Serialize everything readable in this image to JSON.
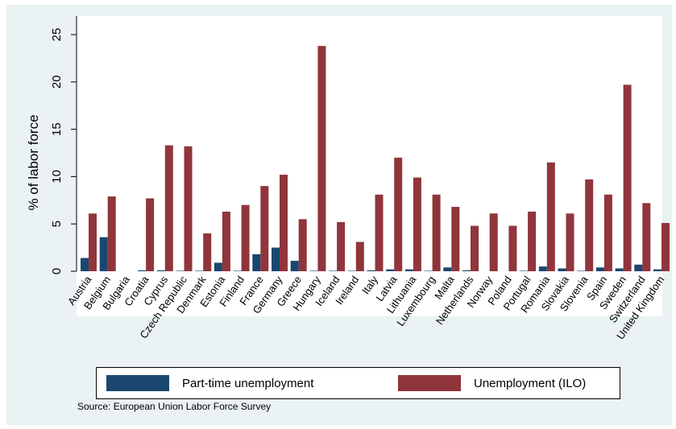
{
  "chart_data": {
    "type": "bar",
    "title": "",
    "xlabel": "",
    "ylabel": "% of labor force",
    "ylim": [
      0,
      27
    ],
    "yticks": [
      0,
      5,
      10,
      15,
      20,
      25
    ],
    "grid": false,
    "legend_position": "bottom",
    "categories": [
      "Austria",
      "Belgium",
      "Bulgaria",
      "Croatia",
      "Cyprus",
      "Czech Republic",
      "Denmark",
      "Estonia",
      "Finland",
      "France",
      "Germany",
      "Greece",
      "Hungary",
      "Iceland",
      "Ireland",
      "Italy",
      "Latvia",
      "Lithuania",
      "Luxembourg",
      "Malta",
      "Netherlands",
      "Norway",
      "Poland",
      "Portugal",
      "Romania",
      "Slovakia",
      "Slovenia",
      "Spain",
      "Sweden",
      "Switzerland",
      "United Kingdom"
    ],
    "series": [
      {
        "name": "Part-time unemployment",
        "color": "#1a476f",
        "values": [
          1.4,
          3.6,
          0.0,
          0.1,
          0.1,
          0.05,
          0.05,
          0.9,
          0.05,
          1.8,
          2.5,
          1.1,
          0.05,
          0.05,
          0.05,
          0.1,
          0.2,
          0.2,
          0.05,
          0.4,
          0.1,
          0.0,
          0.0,
          0.05,
          0.5,
          0.3,
          0.05,
          0.4,
          0.3,
          0.7,
          0.2
        ]
      },
      {
        "name": "Unemployment (ILO)",
        "color": "#90353b",
        "values": [
          6.1,
          7.9,
          0.0,
          7.7,
          13.3,
          13.2,
          4.0,
          6.3,
          7.0,
          9.0,
          10.2,
          5.5,
          23.8,
          5.2,
          3.1,
          8.1,
          12.0,
          9.9,
          8.1,
          6.8,
          4.8,
          6.1,
          4.8,
          6.3,
          11.5,
          6.1,
          9.7,
          8.1,
          19.7,
          7.2,
          5.1
        ]
      }
    ]
  },
  "legend": {
    "items": [
      {
        "label": "Part-time unemployment",
        "color": "#1a476f"
      },
      {
        "label": "Unemployment (ILO)",
        "color": "#90353b"
      }
    ]
  },
  "source_note": "Source: European Union Labor Force Survey"
}
